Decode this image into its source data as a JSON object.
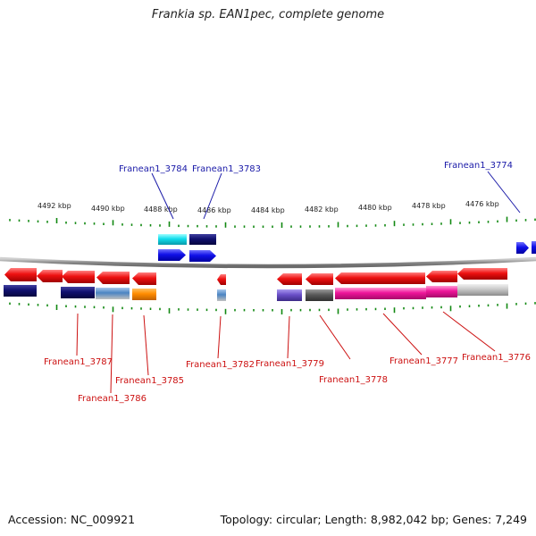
{
  "title": "Frankia sp. EAN1pec, complete genome",
  "coordinates": [
    "4492 kbp",
    "4490 kbp",
    "4488 kbp",
    "4486 kbp",
    "4484 kbp",
    "4482 kbp",
    "4480 kbp",
    "4478 kbp",
    "4476 kbp"
  ],
  "top_labels": [
    {
      "name": "Franean1_3784",
      "color": "#1a1aa8"
    },
    {
      "name": "Franean1_3783",
      "color": "#1a1aa8"
    },
    {
      "name": "Franean1_3774",
      "color": "#1a1aa8"
    }
  ],
  "bottom_labels": [
    {
      "name": "Franean1_3787",
      "color": "#cc1111"
    },
    {
      "name": "Franean1_3786",
      "color": "#cc1111"
    },
    {
      "name": "Franean1_3785",
      "color": "#cc1111"
    },
    {
      "name": "Franean1_3782",
      "color": "#cc1111"
    },
    {
      "name": "Franean1_3779",
      "color": "#cc1111"
    },
    {
      "name": "Franean1_3778",
      "color": "#cc1111"
    },
    {
      "name": "Franean1_3777",
      "color": "#cc1111"
    },
    {
      "name": "Franean1_3776",
      "color": "#cc1111"
    }
  ],
  "colors": {
    "forward_strand": "#1010e8",
    "reverse_strand": "#ee1111",
    "tick": "#118811",
    "backbone": "#888888"
  },
  "footer": {
    "accession": "Accession: NC_009921",
    "summary": "Topology: circular; Length: 8,982,042 bp; Genes: 7,249"
  }
}
